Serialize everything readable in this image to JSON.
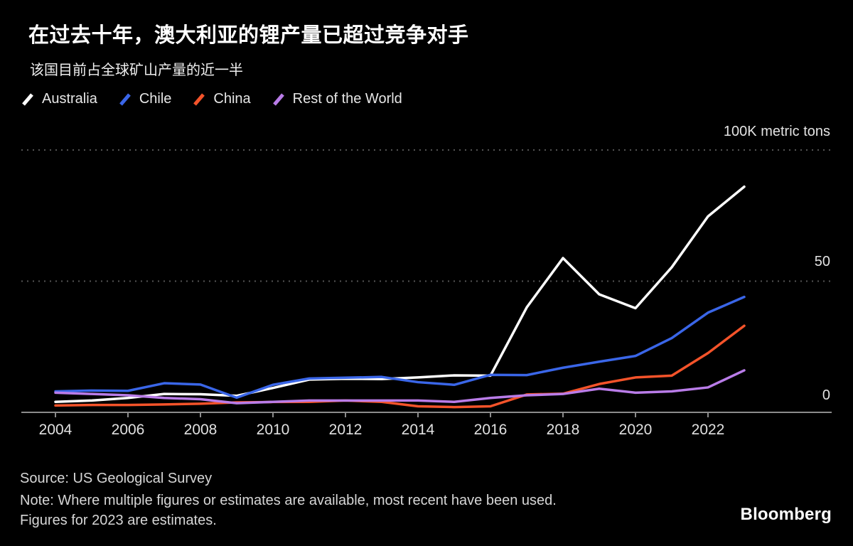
{
  "header": {
    "title": "在过去十年，澳大利亚的锂产量已超过竞争对手",
    "subtitle": "该国目前占全球矿山产量的近一半"
  },
  "chart_data": {
    "type": "line",
    "x": [
      2004,
      2005,
      2006,
      2007,
      2008,
      2009,
      2010,
      2011,
      2012,
      2013,
      2014,
      2015,
      2016,
      2017,
      2018,
      2019,
      2020,
      2021,
      2022,
      2023
    ],
    "x_tick_labels": [
      "2004",
      "2006",
      "2008",
      "2010",
      "2012",
      "2014",
      "2016",
      "2018",
      "2020",
      "2022"
    ],
    "ylim": [
      0,
      100
    ],
    "unit_label": "100K metric tons",
    "y_gridline_values": [
      100,
      50
    ],
    "y_tick_labels": {
      "top": "100K metric tons",
      "mid": "50",
      "zero": "0"
    },
    "grid": "dotted horizontal",
    "legend_position": "top-left",
    "series": [
      {
        "name": "Australia",
        "color": "#ffffff",
        "values": [
          4,
          4.5,
          5.5,
          7,
          6.9,
          6.3,
          9.3,
          12.5,
          12.8,
          12.7,
          13.3,
          14.1,
          14,
          40,
          58.8,
          45,
          39.7,
          55.3,
          74.7,
          86
        ]
      },
      {
        "name": "Chile",
        "color": "#3a66e8",
        "values": [
          8,
          8.3,
          8.2,
          11.1,
          10.6,
          5.6,
          10.5,
          12.9,
          13.2,
          13.5,
          11.5,
          10.5,
          14.3,
          14.2,
          17,
          19.3,
          21.5,
          28.3,
          38,
          44
        ]
      },
      {
        "name": "China",
        "color": "#f4532a",
        "values": [
          2.6,
          2.8,
          2.8,
          3,
          3.3,
          3.8,
          3.95,
          4,
          4.5,
          4,
          2.3,
          2,
          2.3,
          6.8,
          7.1,
          10.8,
          13.3,
          14,
          22.6,
          33
        ]
      },
      {
        "name": "Rest of the World",
        "color": "#b97ce8",
        "values": [
          7.5,
          7,
          6.5,
          5.5,
          5,
          3.5,
          4,
          4.5,
          4.5,
          4.5,
          4.5,
          4,
          5.5,
          6.5,
          7,
          9,
          7.5,
          8,
          9.5,
          16
        ]
      }
    ]
  },
  "footer": {
    "source": "Source: US Geological Survey",
    "note": "Note: Where multiple figures or estimates are available, most recent have been used. Figures for 2023 are estimates.",
    "brand": "Bloomberg"
  }
}
